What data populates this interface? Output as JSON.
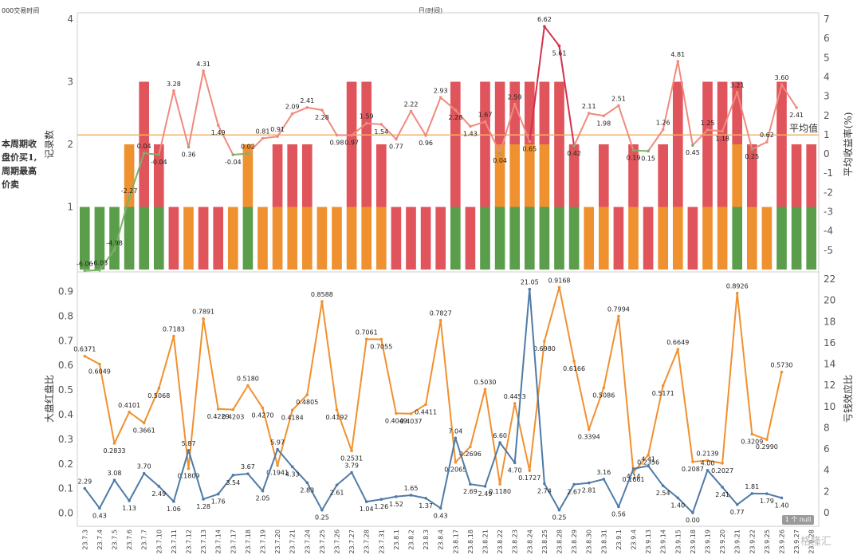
{
  "header": {
    "left": "000交易时间",
    "center": "日(时间)"
  },
  "side_note": "本周期收盘价买1,周期最高价卖",
  "null_badge": "1 个 null",
  "watermark": "格隆汇",
  "colors": {
    "green": "#5a9e4b",
    "orange": "#f0912f",
    "red": "#e0545c",
    "avg_line": "#f2b266",
    "orange_line": "#f0912f",
    "blue_line": "#4f7ba6"
  },
  "chart_data": [
    {
      "type": "bar",
      "stacked": true,
      "ylabel": "记录数",
      "y2label": "平均收益率(%)",
      "ylim": [
        0,
        4
      ],
      "y2lim": [
        -6,
        7
      ],
      "avg_line": {
        "label": "平均值",
        "value": 2.15
      },
      "categories": [
        "23.7.3",
        "23.7.4",
        "23.7.5",
        "23.7.6",
        "23.7.7",
        "23.7.10",
        "23.7.11",
        "23.7.12",
        "23.7.13",
        "23.7.14",
        "23.7.17",
        "23.7.18",
        "23.7.19",
        "23.7.20",
        "23.7.21",
        "23.7.24",
        "23.7.25",
        "23.7.26",
        "23.7.27",
        "23.7.28",
        "23.7.31",
        "23.8.1",
        "23.8.2",
        "23.8.3",
        "23.8.4",
        "23.8.17",
        "23.8.18",
        "23.8.21",
        "23.8.22",
        "23.8.23",
        "23.8.24",
        "23.8.25",
        "23.8.28",
        "23.8.29",
        "23.8.30",
        "23.8.31",
        "23.9.1",
        "23.9.4",
        "23.9.13",
        "23.9.14",
        "23.9.15",
        "23.9.18",
        "23.9.19",
        "23.9.20",
        "23.9.21",
        "23.9.22",
        "23.9.25",
        "23.9.26",
        "23.9.27",
        "23.9.28"
      ],
      "segments": [
        [
          "g"
        ],
        [
          "g"
        ],
        [
          "g"
        ],
        [
          "g",
          "o"
        ],
        [
          "g",
          "r",
          "r"
        ],
        [
          "g",
          "r"
        ],
        [
          "r"
        ],
        [
          "o"
        ],
        [
          "r"
        ],
        [
          "r"
        ],
        [
          "o"
        ],
        [
          "g",
          "o"
        ],
        [
          "o"
        ],
        [
          "o",
          "r"
        ],
        [
          "o",
          "r"
        ],
        [
          "o",
          "r"
        ],
        [
          "o"
        ],
        [
          "o"
        ],
        [
          "o",
          "r",
          "r"
        ],
        [
          "o",
          "r",
          "r"
        ],
        [
          "o",
          "r"
        ],
        [
          "r"
        ],
        [
          "r"
        ],
        [
          "r"
        ],
        [
          "r"
        ],
        [
          "g",
          "r",
          "r"
        ],
        [
          "r"
        ],
        [
          "g",
          "r",
          "r"
        ],
        [
          "g",
          "o",
          "r"
        ],
        [
          "g",
          "o",
          "r"
        ],
        [
          "g",
          "o",
          "r"
        ],
        [
          "g",
          "o",
          "r"
        ],
        [
          "g",
          "r",
          "r"
        ],
        [
          "g",
          "r"
        ],
        [
          "o"
        ],
        [
          "o",
          "r"
        ],
        [
          "r"
        ],
        [
          "o",
          "r"
        ],
        [
          "r"
        ],
        [
          "o",
          "r"
        ],
        [
          "o",
          "r",
          "r"
        ],
        [
          "r"
        ],
        [
          "o",
          "r",
          "r"
        ],
        [
          "o",
          "r",
          "r"
        ],
        [
          "g",
          "o",
          "r"
        ],
        [
          "o",
          "r"
        ],
        [
          "o"
        ],
        [
          "g",
          "r",
          "r"
        ],
        [
          "g",
          "r"
        ],
        [
          "g",
          "r"
        ]
      ],
      "line": {
        "name": "平均收益率(%)",
        "values": [
          -6.06,
          -6.03,
          -4.98,
          -2.27,
          0.04,
          -0.04,
          3.28,
          0.36,
          4.31,
          1.49,
          -0.04,
          0.02,
          0.81,
          0.91,
          2.09,
          2.41,
          2.28,
          0.98,
          0.97,
          1.59,
          1.54,
          0.77,
          2.22,
          0.96,
          2.93,
          2.28,
          1.43,
          1.67,
          0.04,
          2.59,
          0.65,
          6.62,
          5.61,
          0.42,
          2.11,
          1.98,
          2.51,
          0.19,
          0.15,
          1.26,
          4.81,
          0.45,
          1.25,
          1.18,
          3.21,
          0.25,
          0.62,
          3.6,
          2.41,
          null
        ],
        "labels": [
          "-6.06",
          "-6.03",
          "-4.98",
          "-2.27",
          "0.04",
          "-0.04",
          "3.28",
          "0.36",
          "4.31",
          "1.49",
          "-0.04",
          "0.02",
          "0.81",
          "0.91",
          "2.09",
          "2.41",
          "2.28",
          "0.98",
          "0.97",
          "1.59",
          "1.54",
          "0.77",
          "2.22",
          "0.96",
          "2.93",
          "2.28",
          "1.43",
          "1.67",
          "0.04",
          "2.59",
          "0.65",
          "6.62",
          "5.61",
          "0.42",
          "2.11",
          "1.98",
          "2.51",
          "0.19",
          "0.15",
          "1.26",
          "4.81",
          "0.45",
          "1.25",
          "1.18",
          "3.21",
          "0.25",
          "0.62",
          "3.60",
          "2.41",
          ""
        ]
      }
    },
    {
      "type": "line",
      "ylabel": "大盘红盘比",
      "y2label": "亏钱效应比",
      "ylim": [
        -0.05,
        0.95
      ],
      "y2lim": [
        -1.2,
        22
      ],
      "categories": [
        "23.7.3",
        "23.7.4",
        "23.7.5",
        "23.7.6",
        "23.7.7",
        "23.7.10",
        "23.7.11",
        "23.7.12",
        "23.7.13",
        "23.7.14",
        "23.7.17",
        "23.7.18",
        "23.7.19",
        "23.7.20",
        "23.7.21",
        "23.7.24",
        "23.7.25",
        "23.7.26",
        "23.7.27",
        "23.7.28",
        "23.7.31",
        "23.8.1",
        "23.8.2",
        "23.8.3",
        "23.8.4",
        "23.8.17",
        "23.8.18",
        "23.8.21",
        "23.8.22",
        "23.8.23",
        "23.8.24",
        "23.8.25",
        "23.8.28",
        "23.8.29",
        "23.8.30",
        "23.8.31",
        "23.9.1",
        "23.9.4",
        "23.9.13",
        "23.9.14",
        "23.9.15",
        "23.9.18",
        "23.9.19",
        "23.9.20",
        "23.9.21",
        "23.9.22",
        "23.9.25",
        "23.9.26",
        "23.9.27",
        "23.9.28"
      ],
      "series": [
        {
          "name": "大盘红盘比",
          "axis": "left",
          "values": [
            0.6371,
            0.6049,
            0.2833,
            0.4101,
            0.3661,
            0.5068,
            0.7183,
            0.1809,
            0.7891,
            0.4229,
            0.4203,
            0.518,
            0.427,
            0.1941,
            0.4184,
            0.4805,
            0.8588,
            0.4192,
            0.2531,
            0.7061,
            0.7055,
            0.4049,
            0.4037,
            0.4411,
            0.7827,
            0.2065,
            0.2696,
            0.503,
            0.118,
            0.4453,
            0.1727,
            0.698,
            0.9168,
            0.6166,
            0.3394,
            0.5086,
            0.7994,
            0.1661,
            0.2356,
            0.5171,
            0.6649,
            0.2087,
            0.2139,
            0.2027,
            0.8926,
            0.3209,
            0.299,
            0.573,
            null,
            null
          ],
          "labels": [
            "0.6371",
            "0.6049",
            "0.2833",
            "0.4101",
            "0.3661",
            "0.5068",
            "0.7183",
            "0.1809",
            "0.7891",
            "0.4229",
            "0.4203",
            "0.5180",
            "0.4270",
            "0.1941",
            "0.4184",
            "0.4805",
            "0.8588",
            "0.4192",
            "0.2531",
            "0.7061",
            "0.7055",
            "0.4049",
            "0.4037",
            "0.4411",
            "0.7827",
            "0.2065",
            "0.2696",
            "0.5030",
            "0.1180",
            "0.4453",
            "0.1727",
            "0.6980",
            "0.9168",
            "0.6166",
            "0.3394",
            "0.5086",
            "0.7994",
            "0.1661",
            "0.2356",
            "0.5171",
            "0.6649",
            "0.2087",
            "0.2139",
            "0.2027",
            "0.8926",
            "0.3209",
            "0.2990",
            "0.5730",
            "",
            ""
          ]
        },
        {
          "name": "亏钱效应比",
          "axis": "right",
          "values": [
            2.29,
            0.43,
            3.08,
            1.13,
            3.7,
            2.49,
            1.06,
            5.87,
            1.28,
            1.76,
            3.54,
            3.67,
            2.05,
            5.97,
            4.33,
            2.83,
            0.25,
            2.61,
            3.79,
            1.04,
            1.26,
            1.52,
            1.65,
            1.37,
            0.43,
            7.04,
            2.69,
            2.49,
            6.6,
            4.7,
            21.05,
            2.74,
            0.25,
            2.67,
            2.81,
            3.16,
            0.56,
            4.14,
            4.41,
            2.54,
            1.4,
            0.0,
            4.0,
            2.41,
            0.77,
            1.81,
            1.79,
            1.4,
            null,
            null
          ],
          "labels": [
            "2.29",
            "0.43",
            "3.08",
            "1.13",
            "3.70",
            "2.49",
            "1.06",
            "5.87",
            "1.28",
            "1.76",
            "3.54",
            "3.67",
            "2.05",
            "5.97",
            "4.33",
            "2.83",
            "0.25",
            "2.61",
            "3.79",
            "1.04",
            "1.26",
            "1.52",
            "1.65",
            "1.37",
            "0.43",
            "7.04",
            "2.69",
            "2.49",
            "6.60",
            "4.70",
            "21.05",
            "2.74",
            "0.25",
            "2.67",
            "2.81",
            "3.16",
            "0.56",
            "4.14",
            "4.41",
            "2.54",
            "1.40",
            "0.00",
            "4.00",
            "2.41",
            "0.77",
            "1.81",
            "1.79",
            "1.40",
            "",
            ""
          ]
        }
      ]
    }
  ],
  "ticks": {
    "top_left": [
      "1",
      "2",
      "3",
      "4"
    ],
    "top_right": [
      "-5",
      "-4",
      "-3",
      "-2",
      "-1",
      "0",
      "1",
      "2",
      "3",
      "4",
      "5",
      "6",
      "7"
    ],
    "bottom_left": [
      "0.0",
      "0.1",
      "0.2",
      "0.3",
      "0.4",
      "0.5",
      "0.6",
      "0.7",
      "0.8",
      "0.9"
    ],
    "bottom_right": [
      "0",
      "2",
      "4",
      "6",
      "8",
      "10",
      "12",
      "14",
      "16",
      "18",
      "20",
      "22"
    ]
  }
}
